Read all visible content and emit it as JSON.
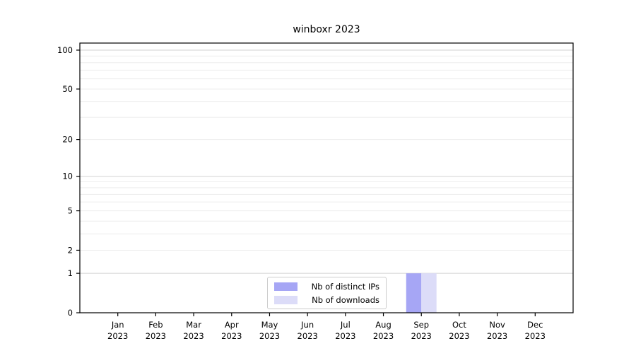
{
  "chart_data": {
    "type": "bar",
    "title": "winboxr 2023",
    "categories": [
      "Jan",
      "Feb",
      "Mar",
      "Apr",
      "May",
      "Jun",
      "Jul",
      "Aug",
      "Sep",
      "Oct",
      "Nov",
      "Dec"
    ],
    "category_sublabel": "2023",
    "series": [
      {
        "name": "Nb of distinct IPs",
        "color": "#a6a6f5",
        "values": [
          0,
          0,
          0,
          0,
          0,
          0,
          0,
          0,
          1,
          0,
          0,
          0
        ]
      },
      {
        "name": "Nb of downloads",
        "color": "#dcdcf8",
        "values": [
          0,
          0,
          0,
          0,
          0,
          0,
          0,
          0,
          1,
          0,
          0,
          0
        ]
      }
    ],
    "xlabel": "",
    "ylabel": "",
    "yscale": "log1p",
    "ylim": [
      0,
      113
    ],
    "yticks": [
      0,
      1,
      2,
      5,
      10,
      20,
      50,
      100
    ],
    "major_gridlines": [
      1,
      10,
      100
    ],
    "minor_gridlines": [
      2,
      3,
      4,
      5,
      6,
      7,
      8,
      9,
      20,
      30,
      40,
      50,
      60,
      70,
      80,
      90
    ],
    "grid": "on",
    "legend_position": "lower center"
  },
  "style": {
    "background": "#ffffff",
    "text_color": "#000000",
    "spine_color": "#000000",
    "grid_major_color": "#d2d2d2",
    "grid_minor_color": "#ededed",
    "legend_border_color": "#cccccc",
    "tick_color": "#000000"
  }
}
